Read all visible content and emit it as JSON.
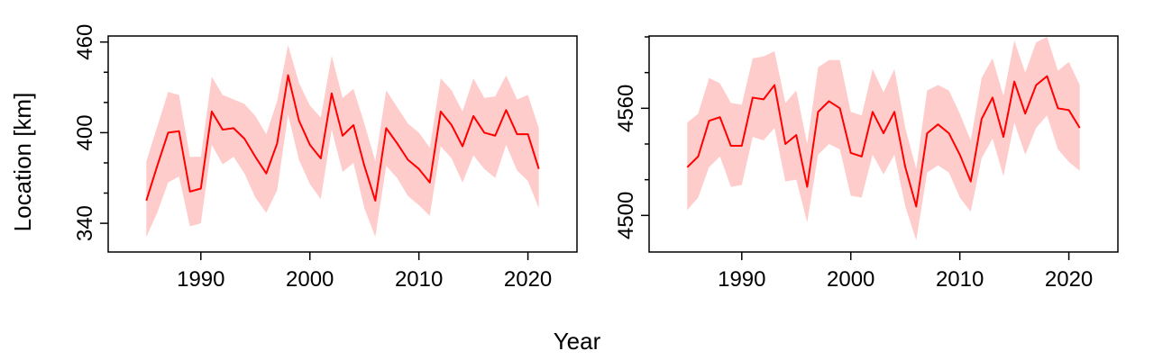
{
  "figure": {
    "xlabel": "Year",
    "ylabel": "Location [km]"
  },
  "colors": {
    "line": "#ff0000",
    "band": "#ffcccc",
    "axes": "#000000",
    "background": "#ffffff"
  },
  "chart_data": [
    {
      "type": "line",
      "title": "",
      "grid": false,
      "xlim": [
        1981.5,
        2024.5
      ],
      "ylim": [
        321,
        464
      ],
      "xticks": [
        1990,
        2000,
        2010,
        2020
      ],
      "yticks": [
        340,
        400,
        460
      ],
      "yminor_ticks": [
        360,
        380,
        420,
        440
      ],
      "x": [
        1985,
        1986,
        1987,
        1988,
        1989,
        1990,
        1991,
        1992,
        1993,
        1994,
        1995,
        1996,
        1997,
        1998,
        1999,
        2000,
        2001,
        2002,
        2003,
        2004,
        2005,
        2006,
        2007,
        2008,
        2009,
        2010,
        2011,
        2012,
        2013,
        2014,
        2015,
        2016,
        2017,
        2018,
        2019,
        2020,
        2021
      ],
      "series": [
        {
          "values": [
            355,
            378,
            400,
            401,
            361,
            363,
            414,
            402,
            403,
            396,
            384,
            373,
            393,
            438,
            408,
            392,
            383,
            426,
            398,
            405,
            378,
            355,
            403,
            393,
            382,
            376,
            367,
            414,
            405,
            391,
            411,
            400,
            398,
            415,
            399,
            399,
            376
          ],
          "lower": [
            331,
            347,
            367,
            371,
            338,
            340,
            392,
            379,
            384,
            373,
            357,
            347,
            362,
            412,
            382,
            366,
            356,
            402,
            374,
            380,
            350,
            331,
            378,
            370,
            358,
            352,
            345,
            391,
            383,
            367,
            385,
            376,
            370,
            392,
            375,
            368,
            350
          ],
          "upper": [
            381,
            404,
            427,
            425,
            384,
            384,
            437,
            425,
            422,
            419,
            411,
            399,
            421,
            458,
            433,
            418,
            410,
            451,
            423,
            429,
            406,
            381,
            428,
            417,
            406,
            400,
            390,
            436,
            428,
            414,
            436,
            423,
            424,
            438,
            422,
            425,
            403
          ]
        }
      ]
    },
    {
      "type": "line",
      "title": "",
      "grid": false,
      "xlim": [
        1981.5,
        2024.5
      ],
      "ylim": [
        4479.5,
        4600.5
      ],
      "xticks": [
        1990,
        2000,
        2010,
        2020
      ],
      "yticks": [
        4500,
        4560
      ],
      "yminor_ticks": [
        4520,
        4540,
        4580,
        4600
      ],
      "x": [
        1985,
        1986,
        1987,
        1988,
        1989,
        1990,
        1991,
        1992,
        1993,
        1994,
        1995,
        1996,
        1997,
        1998,
        1999,
        2000,
        2001,
        2002,
        2003,
        2004,
        2005,
        2006,
        2007,
        2008,
        2009,
        2010,
        2011,
        2012,
        2013,
        2014,
        2015,
        2016,
        2017,
        2018,
        2019,
        2020,
        2021
      ],
      "series": [
        {
          "values": [
            4527,
            4533,
            4553,
            4555,
            4539,
            4539,
            4566,
            4565,
            4573,
            4540,
            4545,
            4516,
            4558,
            4564,
            4560,
            4535,
            4533,
            4558,
            4546,
            4558,
            4527,
            4505,
            4546,
            4551,
            4546,
            4534,
            4519,
            4554,
            4566,
            4544,
            4575,
            4557,
            4573,
            4578,
            4560,
            4559,
            4549
          ],
          "lower": [
            4503,
            4510,
            4527,
            4533,
            4516,
            4517,
            4544,
            4542,
            4549,
            4519,
            4520,
            4496,
            4534,
            4540,
            4537,
            4511,
            4510,
            4534,
            4523,
            4534,
            4505,
            4486,
            4524,
            4528,
            4524,
            4510,
            4502,
            4532,
            4543,
            4522,
            4552,
            4534,
            4549,
            4556,
            4537,
            4530,
            4525
          ],
          "upper": [
            4552,
            4557,
            4577,
            4574,
            4563,
            4562,
            4588,
            4589,
            4592,
            4563,
            4570,
            4540,
            4583,
            4587,
            4587,
            4558,
            4556,
            4582,
            4569,
            4582,
            4549,
            4526,
            4570,
            4573,
            4570,
            4557,
            4542,
            4577,
            4588,
            4567,
            4598,
            4580,
            4597,
            4600,
            4581,
            4586,
            4573
          ]
        }
      ]
    }
  ]
}
